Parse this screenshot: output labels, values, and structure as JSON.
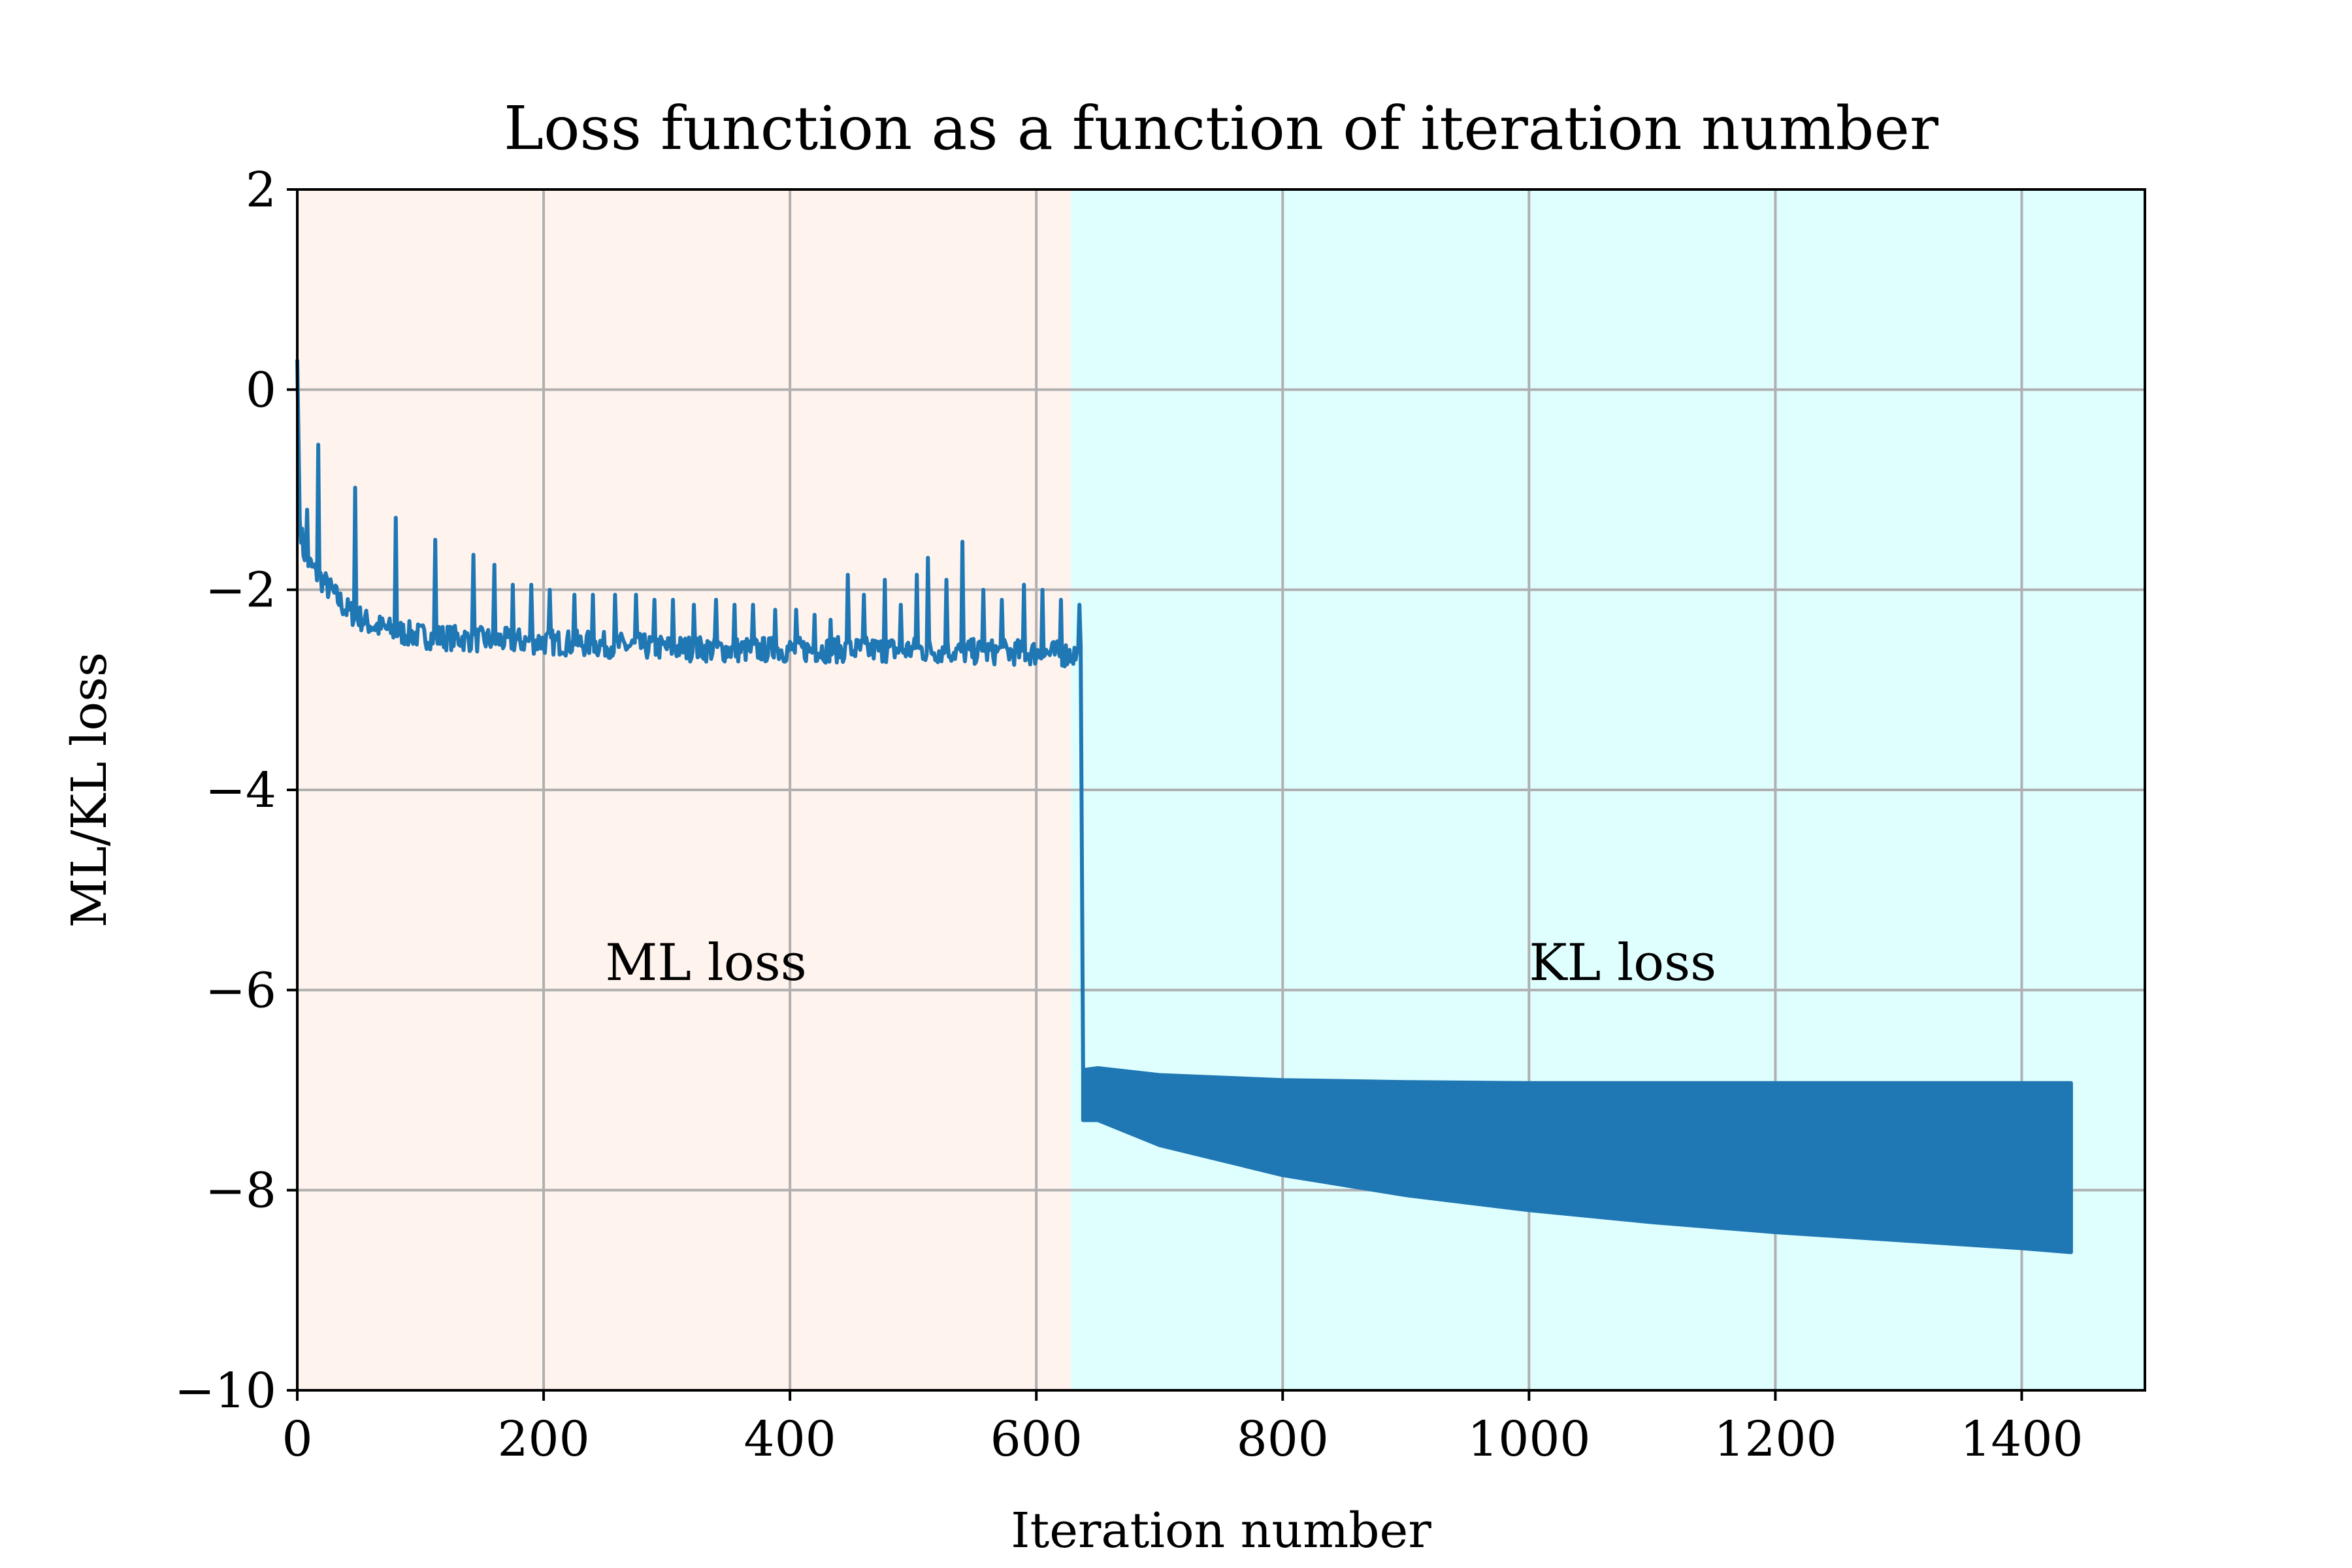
{
  "chart_data": {
    "type": "line",
    "title": "Loss function as a function of iteration number",
    "xlabel": "Iteration number",
    "ylabel": "ML/KL loss",
    "xlim": [
      0,
      1500
    ],
    "ylim": [
      -10,
      2
    ],
    "xticks": [
      0,
      200,
      400,
      600,
      800,
      1000,
      1200,
      1400
    ],
    "yticks": [
      -10,
      -8,
      -6,
      -4,
      -2,
      0,
      2
    ],
    "xtick_labels": [
      "0",
      "200",
      "400",
      "600",
      "800",
      "1000",
      "1200",
      "1400"
    ],
    "ytick_labels": [
      "−10",
      "−8",
      "−6",
      "−4",
      "−2",
      "0",
      "2"
    ],
    "grid": true,
    "line_color": "#1f77b4",
    "regions": [
      {
        "x_start": 0,
        "x_end": 628,
        "color": "#fff3ee",
        "label": "ML loss",
        "label_x": 250,
        "label_y": -5.9
      },
      {
        "x_start": 628,
        "x_end": 1500,
        "color": "#dfffff",
        "label": "KL loss",
        "label_x": 1000,
        "label_y": -5.9
      }
    ],
    "ml_phase": {
      "x": [
        0,
        2,
        5,
        10,
        20,
        30,
        40,
        60,
        80,
        100,
        150,
        200,
        250,
        300,
        350,
        400,
        450,
        500,
        550,
        600,
        636
      ],
      "y": [
        0.3,
        -1.3,
        -1.6,
        -1.75,
        -1.9,
        -2.05,
        -2.2,
        -2.35,
        -2.42,
        -2.46,
        -2.5,
        -2.52,
        -2.55,
        -2.58,
        -2.6,
        -2.6,
        -2.6,
        -2.6,
        -2.62,
        -2.63,
        -2.65
      ],
      "noise": 0.13,
      "spikes": [
        {
          "x": 8,
          "y": -1.2
        },
        {
          "x": 17,
          "y": -0.55
        },
        {
          "x": 47,
          "y": -0.98
        },
        {
          "x": 80,
          "y": -1.28
        },
        {
          "x": 112,
          "y": -1.5
        },
        {
          "x": 143,
          "y": -1.65
        },
        {
          "x": 160,
          "y": -1.75
        },
        {
          "x": 175,
          "y": -1.95
        },
        {
          "x": 190,
          "y": -1.95
        },
        {
          "x": 205,
          "y": -2.0
        },
        {
          "x": 225,
          "y": -2.05
        },
        {
          "x": 240,
          "y": -2.05
        },
        {
          "x": 258,
          "y": -2.05
        },
        {
          "x": 275,
          "y": -2.05
        },
        {
          "x": 290,
          "y": -2.1
        },
        {
          "x": 305,
          "y": -2.1
        },
        {
          "x": 322,
          "y": -2.15
        },
        {
          "x": 340,
          "y": -2.1
        },
        {
          "x": 355,
          "y": -2.15
        },
        {
          "x": 370,
          "y": -2.15
        },
        {
          "x": 388,
          "y": -2.2
        },
        {
          "x": 405,
          "y": -2.2
        },
        {
          "x": 420,
          "y": -2.25
        },
        {
          "x": 433,
          "y": -2.3
        },
        {
          "x": 447,
          "y": -1.85
        },
        {
          "x": 460,
          "y": -2.05
        },
        {
          "x": 477,
          "y": -1.9
        },
        {
          "x": 490,
          "y": -2.15
        },
        {
          "x": 503,
          "y": -1.85
        },
        {
          "x": 512,
          "y": -1.68
        },
        {
          "x": 527,
          "y": -1.9
        },
        {
          "x": 540,
          "y": -1.52
        },
        {
          "x": 557,
          "y": -2.0
        },
        {
          "x": 572,
          "y": -2.1
        },
        {
          "x": 590,
          "y": -1.95
        },
        {
          "x": 605,
          "y": -2.0
        },
        {
          "x": 620,
          "y": -2.1
        },
        {
          "x": 635,
          "y": -2.15
        }
      ]
    },
    "kl_phase": {
      "x": [
        638,
        650,
        700,
        800,
        900,
        1000,
        1100,
        1200,
        1300,
        1400,
        1440
      ],
      "y_upper": [
        -6.8,
        -6.78,
        -6.85,
        -6.9,
        -6.92,
        -6.93,
        -6.93,
        -6.93,
        -6.93,
        -6.93,
        -6.93
      ],
      "y_lower": [
        -7.3,
        -7.3,
        -7.55,
        -7.85,
        -8.05,
        -8.2,
        -8.32,
        -8.42,
        -8.5,
        -8.58,
        -8.62
      ]
    }
  }
}
